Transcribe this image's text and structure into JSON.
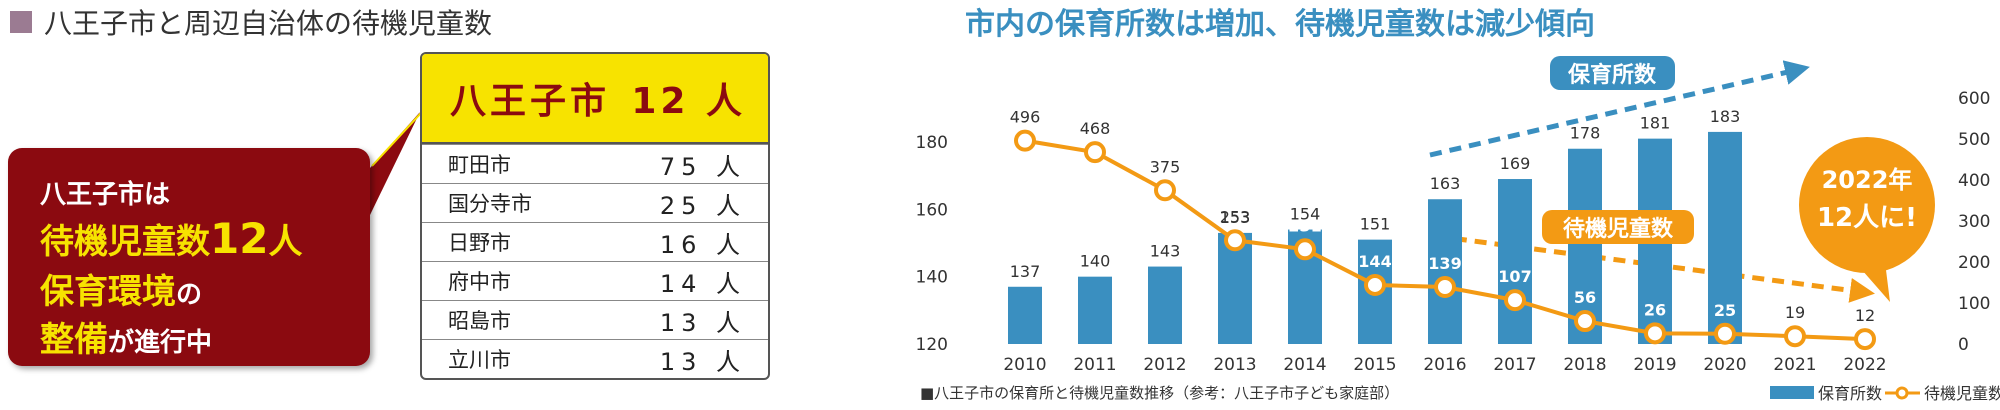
{
  "left_panel": {
    "section_title": "八王子市と周辺自治体の待機児童数",
    "highlight": {
      "city": "八王子市",
      "count": "12 人"
    },
    "rows": [
      {
        "city": "町田市",
        "count": "75 人"
      },
      {
        "city": "国分寺市",
        "count": "25 人"
      },
      {
        "city": "日野市",
        "count": "16 人"
      },
      {
        "city": "府中市",
        "count": "14 人"
      },
      {
        "city": "昭島市",
        "count": "13 人"
      },
      {
        "city": "立川市",
        "count": "13 人"
      }
    ],
    "callout": {
      "line1": "八王子市は",
      "line2_a": "待機児童数",
      "line2_b": "12",
      "line2_c": "人",
      "line3_a": "保育環境",
      "line3_b": "の",
      "line4_a": "整備",
      "line4_b": "が進行中"
    }
  },
  "chart_data": {
    "type": "bar",
    "title": "市内の保育所数は増加、待機児童数は減少傾向",
    "categories": [
      "2010",
      "2011",
      "2012",
      "2013",
      "2014",
      "2015",
      "2016",
      "2017",
      "2018",
      "2019",
      "2020",
      "2021",
      "2022"
    ],
    "series": [
      {
        "name": "保育所数",
        "kind": "bar",
        "axis": "left",
        "values": [
          137,
          140,
          143,
          153,
          154,
          151,
          163,
          169,
          178,
          181,
          183,
          null,
          null
        ]
      },
      {
        "name": "待機児童数",
        "kind": "line",
        "axis": "right",
        "values": [
          496,
          468,
          375,
          253,
          231,
          144,
          139,
          107,
          56,
          26,
          25,
          19,
          12
        ]
      }
    ],
    "left_axis": {
      "ylim": [
        120,
        180
      ],
      "ticks": [
        "120",
        "140",
        "160",
        "180"
      ]
    },
    "right_axis": {
      "ylim": [
        0,
        600
      ],
      "ticks": [
        "0",
        "100",
        "200",
        "300",
        "400",
        "500",
        "600"
      ]
    },
    "annotations": {
      "nurseries_trend": "保育所数",
      "waiting_trend": "待機児童数",
      "badge_line1": "2022年",
      "badge_line2": "12人に!"
    },
    "source_note": "■八王子市の保育所と待機児童数推移（参考：八王子市子ども家庭部）",
    "legend": {
      "position": "bottom-right",
      "bar_label": "保育所数",
      "line_label": "待機児童数"
    },
    "colors": {
      "bar": "#3a8fc0",
      "line": "#f39a14",
      "title": "#3a8fc0",
      "badge": "#f39a14",
      "trend_blue": "#3a8fc0",
      "trend_orange": "#f39a14"
    }
  }
}
